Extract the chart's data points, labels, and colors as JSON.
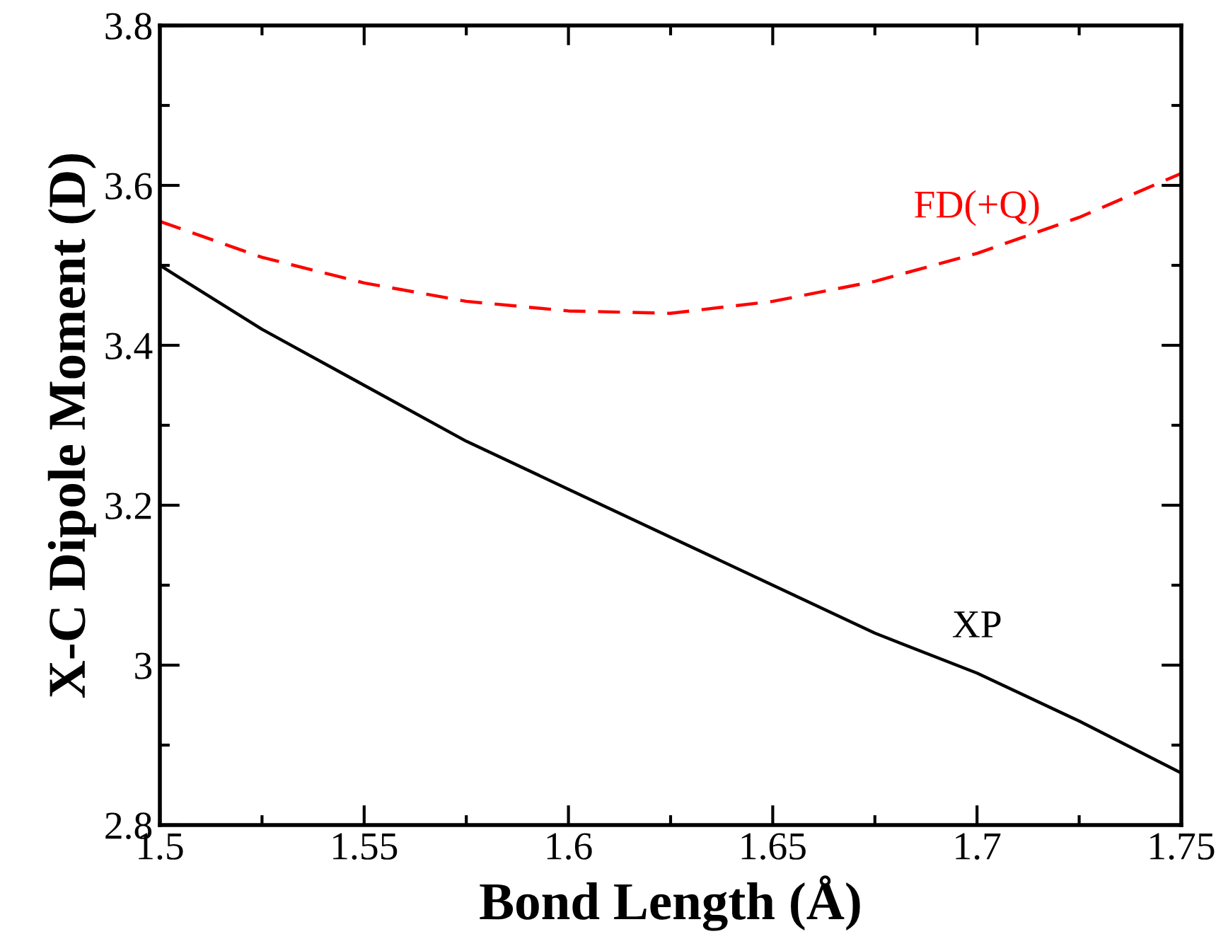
{
  "chart_data": {
    "type": "line",
    "xlabel": "Bond Length (Å)",
    "ylabel": "X-C Dipole Moment (D)",
    "x": [
      1.5,
      1.525,
      1.55,
      1.575,
      1.6,
      1.625,
      1.65,
      1.675,
      1.7,
      1.725,
      1.75
    ],
    "series": [
      {
        "name": "FD(+Q)",
        "color": "#ff0000",
        "line_style": "dashed",
        "values": [
          3.555,
          3.51,
          3.478,
          3.455,
          3.443,
          3.44,
          3.455,
          3.48,
          3.515,
          3.56,
          3.615
        ]
      },
      {
        "name": "XP",
        "color": "#000000",
        "line_style": "solid",
        "values": [
          3.5,
          3.42,
          3.35,
          3.28,
          3.22,
          3.16,
          3.1,
          3.04,
          2.99,
          2.93,
          2.865
        ]
      }
    ],
    "xlim": [
      1.5,
      1.75
    ],
    "ylim": [
      2.8,
      3.8
    ],
    "xticks": [
      1.5,
      1.55,
      1.6,
      1.65,
      1.7,
      1.75
    ],
    "yticks": [
      {
        "value": 2.8,
        "label": "2.8"
      },
      {
        "value": 3.0,
        "label": "3"
      },
      {
        "value": 3.2,
        "label": "3.2"
      },
      {
        "value": 3.4,
        "label": "3.4"
      },
      {
        "value": 3.6,
        "label": "3.6"
      },
      {
        "value": 3.8,
        "label": "3.8"
      }
    ],
    "grid": false,
    "legend": false
  }
}
